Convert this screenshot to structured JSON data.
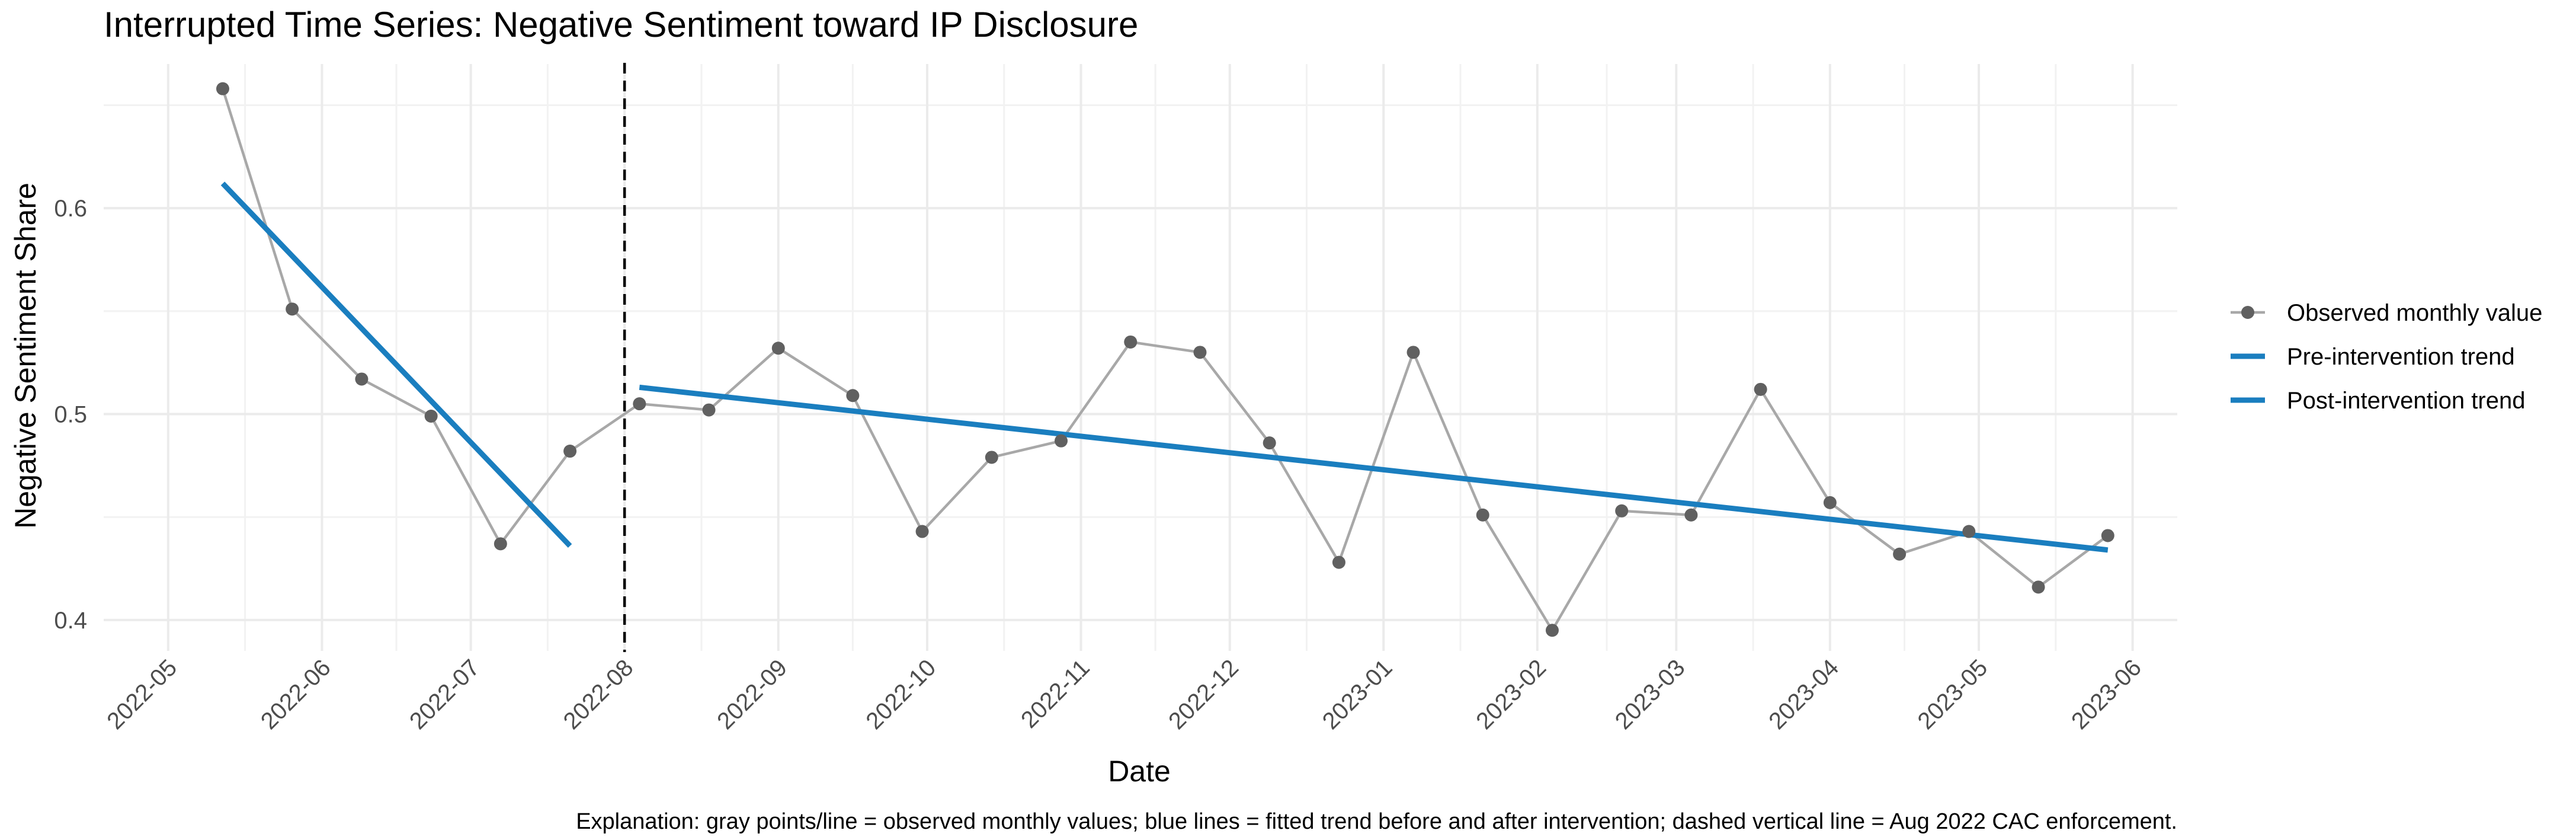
{
  "chart_data": {
    "type": "line",
    "title": "Interrupted Time Series: Negative Sentiment toward IP Disclosure",
    "xlabel": "Date",
    "ylabel": "Negative Sentiment Share",
    "caption": "Explanation: gray points/line = observed monthly values; blue lines = fitted trend before and after intervention; dashed vertical line = Aug 2022 CAC enforcement.",
    "x_ticks": [
      "2022-05",
      "2022-06",
      "2022-07",
      "2022-08",
      "2022-09",
      "2022-10",
      "2022-11",
      "2022-12",
      "2023-01",
      "2023-02",
      "2023-03",
      "2023-04",
      "2023-05",
      "2023-06"
    ],
    "x_tick_days": [
      0,
      31,
      61,
      92,
      123,
      153,
      184,
      214,
      245,
      276,
      304,
      335,
      365,
      396
    ],
    "y_ticks": [
      0.4,
      0.5,
      0.6
    ],
    "xlim_days": [
      -13,
      405
    ],
    "ylim": [
      0.385,
      0.67
    ],
    "grid": true,
    "legend_position": "right",
    "intervention": {
      "day": 92,
      "label": "Aug 2022 CAC enforcement",
      "style": "dashed",
      "color": "#000000"
    },
    "series": [
      {
        "name": "Observed monthly value",
        "kind": "points_line",
        "point_color": "#606060",
        "line_color": "#A8A8A8",
        "x_days": [
          11,
          25,
          39,
          53,
          67,
          81,
          95,
          109,
          123,
          138,
          152,
          166,
          180,
          194,
          208,
          222,
          236,
          251,
          265,
          279,
          293,
          307,
          321,
          335,
          349,
          363,
          377,
          391
        ],
        "values": [
          0.658,
          0.551,
          0.517,
          0.499,
          0.437,
          0.482,
          0.505,
          0.502,
          0.532,
          0.509,
          0.443,
          0.479,
          0.487,
          0.535,
          0.53,
          0.486,
          0.428,
          0.53,
          0.451,
          0.395,
          0.453,
          0.451,
          0.512,
          0.457,
          0.432,
          0.443,
          0.416,
          0.441
        ]
      },
      {
        "name": "Pre-intervention trend",
        "kind": "line",
        "color": "#1A7EBF",
        "x_days": [
          11,
          81
        ],
        "values": [
          0.612,
          0.436
        ]
      },
      {
        "name": "Post-intervention trend",
        "kind": "line",
        "color": "#1A7EBF",
        "x_days": [
          95,
          391
        ],
        "values": [
          0.513,
          0.434
        ]
      }
    ]
  }
}
